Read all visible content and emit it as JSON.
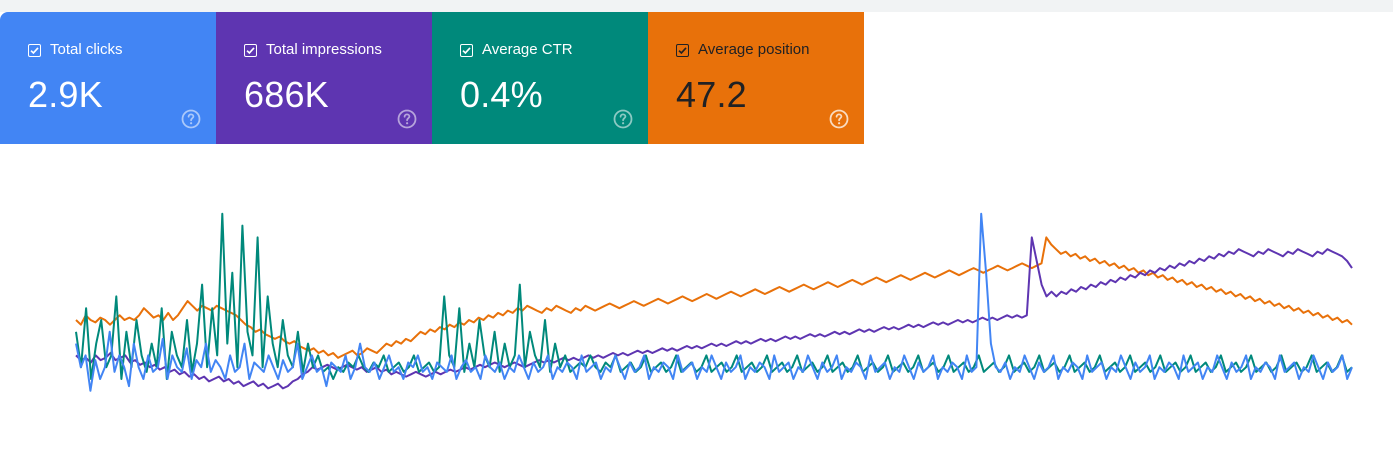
{
  "metrics": [
    {
      "label": "Total clicks",
      "value": "2.9K",
      "color": "#4285f4",
      "checked": true,
      "help_icon": "help-circle-icon"
    },
    {
      "label": "Total impressions",
      "value": "686K",
      "color": "#5e35b1",
      "checked": true,
      "help_icon": "help-circle-icon"
    },
    {
      "label": "Average CTR",
      "value": "0.4%",
      "color": "#00897b",
      "checked": true,
      "help_icon": "help-circle-icon"
    },
    {
      "label": "Average position",
      "value": "47.2",
      "color": "#e8710a",
      "checked": true,
      "help_icon": "help-circle-icon"
    }
  ],
  "chart_data": {
    "type": "line",
    "title": "",
    "xlabel": "",
    "ylabel": "",
    "axes_visible": false,
    "grid": false,
    "point_count": 260,
    "series": [
      {
        "metric": "Total clicks",
        "color": "#4285f4",
        "values": [
          0.4,
          0.3,
          0.35,
          0.2,
          0.33,
          0.25,
          0.3,
          0.45,
          0.28,
          0.35,
          0.3,
          0.22,
          0.4,
          0.3,
          0.25,
          0.35,
          0.28,
          0.3,
          0.42,
          0.25,
          0.35,
          0.3,
          0.28,
          0.38,
          0.25,
          0.33,
          0.3,
          0.4,
          0.28,
          0.33,
          0.3,
          0.25,
          0.35,
          0.28,
          0.3,
          0.4,
          0.25,
          0.32,
          0.3,
          0.28,
          0.35,
          0.3,
          0.25,
          0.33,
          0.28,
          0.3,
          0.4,
          0.25,
          0.3,
          0.35,
          0.28,
          0.3,
          0.22,
          0.32,
          0.3,
          0.28,
          0.35,
          0.25,
          0.3,
          0.4,
          0.3,
          0.28,
          0.32,
          0.25,
          0.3,
          0.35,
          0.28,
          0.3,
          0.25,
          0.32,
          0.3,
          0.35,
          0.28,
          0.3,
          0.25,
          0.32,
          0.3,
          0.28,
          0.35,
          0.25,
          0.3,
          0.33,
          0.28,
          0.3,
          0.25,
          0.35,
          0.3,
          0.28,
          0.32,
          0.25,
          0.3,
          0.28,
          0.35,
          0.3,
          0.25,
          0.32,
          0.28,
          0.3,
          0.35,
          0.25,
          0.3,
          0.28,
          0.32,
          0.3,
          0.25,
          0.35,
          0.28,
          0.3,
          0.32,
          0.25,
          0.3,
          0.28,
          0.35,
          0.3,
          0.25,
          0.32,
          0.28,
          0.3,
          0.35,
          0.25,
          0.3,
          0.28,
          0.32,
          0.3,
          0.25,
          0.35,
          0.28,
          0.3,
          0.32,
          0.25,
          0.3,
          0.28,
          0.35,
          0.3,
          0.25,
          0.32,
          0.28,
          0.3,
          0.35,
          0.25,
          0.3,
          0.28,
          0.32,
          0.3,
          0.25,
          0.35,
          0.28,
          0.3,
          0.32,
          0.25,
          0.3,
          0.28,
          0.35,
          0.3,
          0.25,
          0.32,
          0.28,
          0.3,
          0.35,
          0.25,
          0.3,
          0.28,
          0.32,
          0.3,
          0.25,
          0.35,
          0.28,
          0.3,
          0.32,
          0.25,
          0.3,
          0.28,
          0.35,
          0.3,
          0.25,
          0.32,
          0.28,
          0.3,
          0.35,
          0.25,
          0.3,
          0.28,
          0.32,
          0.3,
          0.25,
          0.35,
          0.28,
          0.3,
          0.95,
          0.7,
          0.4,
          0.3,
          0.28,
          0.32,
          0.25,
          0.3,
          0.28,
          0.35,
          0.3,
          0.25,
          0.32,
          0.28,
          0.3,
          0.35,
          0.25,
          0.3,
          0.28,
          0.32,
          0.3,
          0.25,
          0.35,
          0.28,
          0.3,
          0.32,
          0.25,
          0.3,
          0.28,
          0.35,
          0.3,
          0.25,
          0.32,
          0.28,
          0.3,
          0.35,
          0.25,
          0.3,
          0.28,
          0.32,
          0.3,
          0.25,
          0.35,
          0.28,
          0.3,
          0.32,
          0.25,
          0.3,
          0.28,
          0.35,
          0.3,
          0.25,
          0.32,
          0.28,
          0.3,
          0.35,
          0.25,
          0.3,
          0.28,
          0.32,
          0.3,
          0.25,
          0.35,
          0.28,
          0.3,
          0.32,
          0.25,
          0.3,
          0.28,
          0.35,
          0.3,
          0.25,
          0.32,
          0.28,
          0.3,
          0.35,
          0.25,
          0.3
        ]
      },
      {
        "metric": "Total impressions",
        "color": "#5e35b1",
        "values": [
          0.35,
          0.33,
          0.34,
          0.32,
          0.35,
          0.33,
          0.34,
          0.36,
          0.33,
          0.34,
          0.35,
          0.32,
          0.33,
          0.31,
          0.32,
          0.3,
          0.31,
          0.29,
          0.3,
          0.28,
          0.29,
          0.27,
          0.28,
          0.26,
          0.27,
          0.25,
          0.26,
          0.24,
          0.25,
          0.26,
          0.24,
          0.25,
          0.23,
          0.24,
          0.22,
          0.23,
          0.24,
          0.22,
          0.23,
          0.21,
          0.22,
          0.23,
          0.21,
          0.22,
          0.24,
          0.25,
          0.27,
          0.28,
          0.3,
          0.29,
          0.3,
          0.31,
          0.3,
          0.29,
          0.3,
          0.31,
          0.3,
          0.29,
          0.3,
          0.28,
          0.29,
          0.3,
          0.28,
          0.29,
          0.27,
          0.28,
          0.27,
          0.26,
          0.27,
          0.28,
          0.27,
          0.26,
          0.27,
          0.28,
          0.27,
          0.28,
          0.29,
          0.28,
          0.29,
          0.3,
          0.29,
          0.3,
          0.31,
          0.3,
          0.31,
          0.32,
          0.31,
          0.3,
          0.31,
          0.32,
          0.31,
          0.3,
          0.31,
          0.32,
          0.33,
          0.32,
          0.33,
          0.32,
          0.33,
          0.34,
          0.33,
          0.34,
          0.33,
          0.34,
          0.35,
          0.34,
          0.35,
          0.34,
          0.35,
          0.36,
          0.35,
          0.36,
          0.35,
          0.36,
          0.37,
          0.36,
          0.37,
          0.36,
          0.37,
          0.38,
          0.37,
          0.38,
          0.37,
          0.38,
          0.39,
          0.38,
          0.39,
          0.38,
          0.39,
          0.4,
          0.39,
          0.4,
          0.39,
          0.4,
          0.41,
          0.4,
          0.41,
          0.4,
          0.41,
          0.42,
          0.41,
          0.42,
          0.41,
          0.42,
          0.43,
          0.42,
          0.43,
          0.42,
          0.43,
          0.44,
          0.43,
          0.44,
          0.43,
          0.44,
          0.45,
          0.44,
          0.45,
          0.44,
          0.45,
          0.46,
          0.45,
          0.46,
          0.45,
          0.46,
          0.47,
          0.46,
          0.47,
          0.46,
          0.47,
          0.48,
          0.47,
          0.48,
          0.47,
          0.48,
          0.49,
          0.48,
          0.49,
          0.48,
          0.49,
          0.5,
          0.49,
          0.5,
          0.49,
          0.5,
          0.51,
          0.5,
          0.51,
          0.5,
          0.51,
          0.52,
          0.51,
          0.52,
          0.51,
          0.52,
          0.85,
          0.75,
          0.65,
          0.6,
          0.62,
          0.6,
          0.62,
          0.61,
          0.63,
          0.62,
          0.64,
          0.63,
          0.65,
          0.64,
          0.66,
          0.65,
          0.67,
          0.66,
          0.68,
          0.67,
          0.69,
          0.68,
          0.7,
          0.69,
          0.71,
          0.7,
          0.72,
          0.71,
          0.73,
          0.72,
          0.74,
          0.73,
          0.75,
          0.74,
          0.76,
          0.75,
          0.77,
          0.76,
          0.78,
          0.77,
          0.79,
          0.78,
          0.8,
          0.79,
          0.78,
          0.77,
          0.79,
          0.78,
          0.8,
          0.79,
          0.78,
          0.77,
          0.79,
          0.78,
          0.8,
          0.79,
          0.78,
          0.77,
          0.79,
          0.78,
          0.8,
          0.79,
          0.78,
          0.77,
          0.75,
          0.72
        ]
      },
      {
        "metric": "Average CTR",
        "color": "#00897b",
        "values": [
          0.45,
          0.3,
          0.55,
          0.25,
          0.4,
          0.5,
          0.3,
          0.35,
          0.6,
          0.25,
          0.45,
          0.3,
          0.5,
          0.35,
          0.28,
          0.4,
          0.3,
          0.55,
          0.25,
          0.45,
          0.35,
          0.3,
          0.5,
          0.28,
          0.4,
          0.65,
          0.3,
          0.55,
          0.35,
          0.95,
          0.4,
          0.7,
          0.3,
          0.9,
          0.45,
          0.35,
          0.85,
          0.3,
          0.6,
          0.4,
          0.3,
          0.5,
          0.35,
          0.3,
          0.45,
          0.28,
          0.4,
          0.3,
          0.35,
          0.28,
          0.3,
          0.25,
          0.3,
          0.28,
          0.32,
          0.3,
          0.35,
          0.3,
          0.28,
          0.32,
          0.3,
          0.35,
          0.28,
          0.3,
          0.32,
          0.28,
          0.3,
          0.35,
          0.28,
          0.3,
          0.32,
          0.28,
          0.3,
          0.6,
          0.35,
          0.3,
          0.55,
          0.28,
          0.4,
          0.3,
          0.5,
          0.35,
          0.3,
          0.45,
          0.28,
          0.4,
          0.3,
          0.35,
          0.65,
          0.3,
          0.45,
          0.35,
          0.3,
          0.5,
          0.28,
          0.4,
          0.3,
          0.35,
          0.28,
          0.3,
          0.32,
          0.3,
          0.35,
          0.3,
          0.28,
          0.32,
          0.3,
          0.35,
          0.28,
          0.3,
          0.32,
          0.28,
          0.3,
          0.35,
          0.28,
          0.3,
          0.32,
          0.28,
          0.3,
          0.35,
          0.28,
          0.3,
          0.32,
          0.28,
          0.3,
          0.35,
          0.28,
          0.3,
          0.32,
          0.28,
          0.3,
          0.35,
          0.28,
          0.3,
          0.32,
          0.28,
          0.3,
          0.35,
          0.28,
          0.3,
          0.32,
          0.28,
          0.3,
          0.35,
          0.28,
          0.3,
          0.32,
          0.28,
          0.3,
          0.35,
          0.28,
          0.3,
          0.32,
          0.28,
          0.3,
          0.35,
          0.28,
          0.3,
          0.32,
          0.28,
          0.3,
          0.35,
          0.28,
          0.3,
          0.32,
          0.28,
          0.3,
          0.35,
          0.28,
          0.3,
          0.32,
          0.28,
          0.3,
          0.35,
          0.28,
          0.3,
          0.32,
          0.28,
          0.3,
          0.35,
          0.28,
          0.3,
          0.32,
          0.28,
          0.3,
          0.35,
          0.28,
          0.3,
          0.32,
          0.28,
          0.3,
          0.35,
          0.28,
          0.3,
          0.32,
          0.28,
          0.3,
          0.35,
          0.28,
          0.3,
          0.32,
          0.28,
          0.3,
          0.35,
          0.28,
          0.3,
          0.32,
          0.28,
          0.3,
          0.35,
          0.28,
          0.3,
          0.32,
          0.28,
          0.3,
          0.35,
          0.28,
          0.3,
          0.32,
          0.28,
          0.3,
          0.35,
          0.28,
          0.3,
          0.32,
          0.28,
          0.3,
          0.35,
          0.28,
          0.3,
          0.32,
          0.28,
          0.3,
          0.35,
          0.28,
          0.3,
          0.32,
          0.28,
          0.3,
          0.35,
          0.28,
          0.3,
          0.32,
          0.28,
          0.3,
          0.35,
          0.28,
          0.3,
          0.32,
          0.28,
          0.3,
          0.35,
          0.28,
          0.3
        ]
      },
      {
        "metric": "Average position",
        "color": "#e8710a",
        "values": [
          0.5,
          0.48,
          0.52,
          0.5,
          0.49,
          0.51,
          0.5,
          0.48,
          0.5,
          0.52,
          0.5,
          0.51,
          0.5,
          0.52,
          0.55,
          0.53,
          0.51,
          0.52,
          0.5,
          0.53,
          0.5,
          0.52,
          0.55,
          0.58,
          0.56,
          0.54,
          0.56,
          0.55,
          0.54,
          0.56,
          0.55,
          0.54,
          0.53,
          0.52,
          0.5,
          0.48,
          0.47,
          0.45,
          0.46,
          0.44,
          0.43,
          0.42,
          0.43,
          0.41,
          0.4,
          0.41,
          0.39,
          0.38,
          0.37,
          0.38,
          0.36,
          0.37,
          0.35,
          0.36,
          0.34,
          0.35,
          0.36,
          0.37,
          0.35,
          0.36,
          0.38,
          0.37,
          0.36,
          0.38,
          0.4,
          0.39,
          0.41,
          0.4,
          0.42,
          0.41,
          0.43,
          0.45,
          0.44,
          0.46,
          0.45,
          0.47,
          0.46,
          0.48,
          0.47,
          0.49,
          0.48,
          0.5,
          0.49,
          0.51,
          0.5,
          0.52,
          0.51,
          0.53,
          0.52,
          0.54,
          0.53,
          0.55,
          0.54,
          0.56,
          0.55,
          0.54,
          0.53,
          0.55,
          0.54,
          0.56,
          0.55,
          0.54,
          0.53,
          0.55,
          0.54,
          0.56,
          0.55,
          0.54,
          0.55,
          0.56,
          0.57,
          0.56,
          0.55,
          0.56,
          0.57,
          0.58,
          0.57,
          0.56,
          0.57,
          0.58,
          0.59,
          0.58,
          0.57,
          0.58,
          0.59,
          0.6,
          0.59,
          0.58,
          0.59,
          0.6,
          0.61,
          0.6,
          0.59,
          0.6,
          0.61,
          0.62,
          0.61,
          0.6,
          0.61,
          0.62,
          0.63,
          0.62,
          0.61,
          0.62,
          0.63,
          0.64,
          0.63,
          0.62,
          0.63,
          0.64,
          0.65,
          0.64,
          0.63,
          0.64,
          0.65,
          0.66,
          0.65,
          0.64,
          0.65,
          0.66,
          0.67,
          0.66,
          0.65,
          0.66,
          0.67,
          0.68,
          0.67,
          0.66,
          0.67,
          0.68,
          0.69,
          0.68,
          0.67,
          0.68,
          0.69,
          0.7,
          0.69,
          0.68,
          0.69,
          0.7,
          0.71,
          0.7,
          0.69,
          0.7,
          0.71,
          0.72,
          0.71,
          0.7,
          0.71,
          0.72,
          0.73,
          0.72,
          0.71,
          0.72,
          0.73,
          0.74,
          0.73,
          0.72,
          0.73,
          0.74,
          0.85,
          0.82,
          0.8,
          0.78,
          0.79,
          0.77,
          0.78,
          0.76,
          0.77,
          0.75,
          0.76,
          0.74,
          0.75,
          0.73,
          0.74,
          0.72,
          0.73,
          0.71,
          0.72,
          0.7,
          0.71,
          0.69,
          0.7,
          0.68,
          0.69,
          0.67,
          0.68,
          0.66,
          0.67,
          0.65,
          0.66,
          0.64,
          0.65,
          0.63,
          0.64,
          0.62,
          0.63,
          0.61,
          0.62,
          0.6,
          0.61,
          0.59,
          0.6,
          0.58,
          0.59,
          0.57,
          0.58,
          0.56,
          0.57,
          0.55,
          0.56,
          0.54,
          0.55,
          0.53,
          0.54,
          0.52,
          0.53,
          0.51,
          0.52,
          0.5,
          0.51,
          0.49,
          0.5,
          0.48
        ]
      }
    ]
  }
}
